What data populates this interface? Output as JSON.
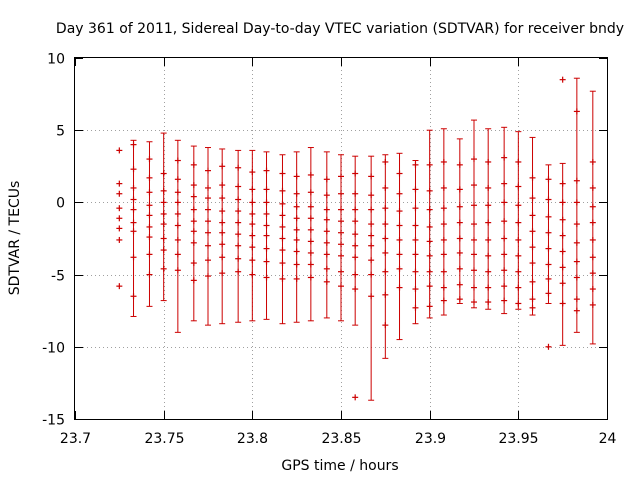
{
  "chart_data": {
    "type": "errorbar",
    "title": "Day 361 of 2011, Sidereal Day-to-day VTEC variation (SDTVAR) for receiver bndy",
    "xlabel": "GPS time / hours",
    "ylabel": "SDTVAR / TECUs",
    "xlim": [
      23.7,
      24.0
    ],
    "ylim": [
      -15,
      10
    ],
    "xticks": [
      23.7,
      23.75,
      23.8,
      23.85,
      23.9,
      23.95,
      24.0
    ],
    "xtick_labels": [
      "23.7",
      "23.75",
      "23.8",
      "23.85",
      "23.9",
      "23.95",
      "24"
    ],
    "yticks": [
      -15,
      -10,
      -5,
      0,
      5,
      10
    ],
    "ytick_labels": [
      "-15",
      "-10",
      "-5",
      "0",
      "5",
      "10"
    ],
    "grid": true,
    "series_color": "#cc0000",
    "series": [
      {
        "x": 23.725,
        "points": [
          3.6,
          1.3,
          0.6,
          -0.4,
          -1.1,
          -1.8,
          -2.6,
          -5.8
        ]
      },
      {
        "x": 23.733,
        "points": [
          4.0,
          2.3,
          1.0,
          0.2,
          -0.5,
          -1.4,
          -2.0,
          -3.8,
          -6.5
        ],
        "lo": -7.9,
        "hi": 4.3
      },
      {
        "x": 23.742,
        "points": [
          3.0,
          1.7,
          0.7,
          -0.2,
          -0.9,
          -1.7,
          -2.4,
          -3.6,
          -5.0
        ],
        "lo": -7.2,
        "hi": 4.2
      },
      {
        "x": 23.75,
        "points": [
          2.0,
          0.8,
          0.0,
          -0.8,
          -1.5,
          -2.5,
          -3.3,
          -4.6
        ],
        "lo": -6.8,
        "hi": 4.8
      },
      {
        "x": 23.758,
        "points": [
          2.9,
          1.6,
          0.7,
          0.0,
          -0.8,
          -1.6,
          -2.6,
          -3.6,
          -4.7
        ],
        "lo": -9.0,
        "hi": 4.3
      },
      {
        "x": 23.767,
        "points": [
          2.6,
          1.2,
          0.4,
          -0.5,
          -1.3,
          -2.0,
          -2.8,
          -4.2,
          -5.4
        ],
        "lo": -8.2,
        "hi": 3.9
      },
      {
        "x": 23.775,
        "points": [
          2.2,
          1.0,
          0.3,
          -0.5,
          -1.3,
          -2.1,
          -3.0,
          -4.0,
          -5.1
        ],
        "lo": -8.5,
        "hi": 3.8
      },
      {
        "x": 23.783,
        "points": [
          2.5,
          1.2,
          0.3,
          -0.6,
          -1.4,
          -2.1,
          -2.9,
          -3.8,
          -4.9
        ],
        "lo": -8.4,
        "hi": 3.7
      },
      {
        "x": 23.792,
        "points": [
          2.4,
          1.1,
          0.2,
          -0.6,
          -1.4,
          -2.2,
          -3.0,
          -3.9,
          -4.8
        ],
        "lo": -8.3,
        "hi": 3.6
      },
      {
        "x": 23.8,
        "points": [
          2.1,
          0.9,
          0.0,
          -0.8,
          -1.5,
          -2.3,
          -3.1,
          -4.0,
          -5.0
        ],
        "lo": -8.2,
        "hi": 3.6
      },
      {
        "x": 23.808,
        "points": [
          2.2,
          0.9,
          0.0,
          -0.8,
          -1.6,
          -2.3,
          -3.2,
          -4.1,
          -5.2
        ],
        "lo": -8.1,
        "hi": 3.5
      },
      {
        "x": 23.817,
        "points": [
          2.0,
          0.8,
          -0.1,
          -0.9,
          -1.7,
          -2.5,
          -3.3,
          -4.2,
          -5.3
        ],
        "lo": -8.4,
        "hi": 3.3
      },
      {
        "x": 23.825,
        "points": [
          1.8,
          0.6,
          -0.3,
          -1.1,
          -1.9,
          -2.6,
          -3.4,
          -4.3,
          -5.3
        ],
        "lo": -8.3,
        "hi": 3.5
      },
      {
        "x": 23.833,
        "points": [
          1.9,
          0.7,
          -0.3,
          -1.1,
          -1.9,
          -2.7,
          -3.5,
          -4.3,
          -5.2
        ],
        "lo": -8.2,
        "hi": 3.8
      },
      {
        "x": 23.842,
        "points": [
          1.6,
          0.5,
          -0.5,
          -1.2,
          -2.0,
          -2.8,
          -3.6,
          -4.6,
          -5.5
        ],
        "lo": -8.0,
        "hi": 3.5
      },
      {
        "x": 23.85,
        "points": [
          1.8,
          0.6,
          -0.5,
          -1.3,
          -2.1,
          -2.9,
          -3.7,
          -4.8,
          -5.8
        ],
        "lo": -8.2,
        "hi": 3.3
      },
      {
        "x": 23.858,
        "points": [
          2.0,
          0.6,
          -0.5,
          -1.3,
          -2.2,
          -3.0,
          -3.8,
          -5.0,
          -6.0,
          -13.5
        ],
        "lo": -8.5,
        "hi": 3.2
      },
      {
        "x": 23.867,
        "points": [
          1.8,
          0.5,
          -0.5,
          -1.5,
          -2.3,
          -3.0,
          -4.0,
          -5.0,
          -6.5
        ],
        "lo": -13.7,
        "hi": 3.2
      },
      {
        "x": 23.875,
        "points": [
          2.8,
          1.0,
          -0.4,
          -1.5,
          -2.5,
          -3.5,
          -4.8,
          -6.4,
          -8.5
        ],
        "lo": -10.8,
        "hi": 3.3
      },
      {
        "x": 23.883,
        "points": [
          2.0,
          0.6,
          -0.6,
          -1.6,
          -2.6,
          -3.6,
          -4.6,
          -5.9
        ],
        "lo": -9.5,
        "hi": 3.4
      },
      {
        "x": 23.892,
        "points": [
          2.6,
          0.9,
          -0.4,
          -1.6,
          -2.6,
          -3.6,
          -4.8,
          -6.0,
          -7.3
        ],
        "lo": -8.4,
        "hi": 2.9
      },
      {
        "x": 23.9,
        "points": [
          2.6,
          0.8,
          -0.5,
          -1.7,
          -2.7,
          -3.7,
          -4.8,
          -5.8,
          -7.2
        ],
        "lo": -8.0,
        "hi": 5.0
      },
      {
        "x": 23.908,
        "points": [
          2.8,
          1.0,
          -0.4,
          -1.5,
          -2.6,
          -3.6,
          -4.8,
          -5.9,
          -6.8
        ],
        "lo": -7.8,
        "hi": 5.1
      },
      {
        "x": 23.917,
        "points": [
          2.6,
          0.9,
          -0.3,
          -1.4,
          -2.5,
          -3.5,
          -4.6,
          -5.7,
          -6.7
        ],
        "lo": -7.0,
        "hi": 4.4
      },
      {
        "x": 23.925,
        "points": [
          3.0,
          1.2,
          -0.2,
          -1.5,
          -2.6,
          -3.6,
          -4.7,
          -5.9,
          -6.9
        ],
        "lo": -7.3,
        "hi": 5.7
      },
      {
        "x": 23.933,
        "points": [
          2.8,
          1.0,
          -0.2,
          -1.4,
          -2.6,
          -3.7,
          -4.8,
          -5.9,
          -6.9
        ],
        "lo": -7.4,
        "hi": 5.1
      },
      {
        "x": 23.942,
        "points": [
          3.1,
          1.3,
          0.0,
          -1.3,
          -2.5,
          -3.6,
          -4.7,
          -5.8,
          -6.8
        ],
        "lo": -7.7,
        "hi": 5.2
      },
      {
        "x": 23.95,
        "points": [
          2.8,
          1.1,
          -0.2,
          -1.4,
          -2.6,
          -3.7,
          -4.8,
          -5.9,
          -7.0
        ],
        "lo": -7.4,
        "hi": 4.9
      },
      {
        "x": 23.958,
        "points": [
          1.7,
          0.3,
          -0.9,
          -2.0,
          -3.1,
          -4.2,
          -5.5,
          -6.7,
          -7.3
        ],
        "lo": -7.8,
        "hi": 4.5
      },
      {
        "x": 23.967,
        "points": [
          1.6,
          0.2,
          -1.0,
          -2.1,
          -3.2,
          -4.3,
          -5.3,
          -6.3,
          -10.0
        ],
        "lo": -7.0,
        "hi": 2.6
      },
      {
        "x": 23.975,
        "points": [
          8.5,
          1.3,
          0.0,
          -1.2,
          -2.3,
          -3.4,
          -4.5,
          -5.6,
          -7.0
        ],
        "lo": -9.9,
        "hi": 2.7
      },
      {
        "x": 23.983,
        "points": [
          6.3,
          1.5,
          0.0,
          -1.5,
          -2.8,
          -4.1,
          -5.2,
          -6.7,
          -7.5
        ],
        "lo": -9.0,
        "hi": 8.6
      },
      {
        "x": 23.992,
        "points": [
          2.8,
          1.0,
          -0.3,
          -1.4,
          -2.6,
          -3.8,
          -4.9,
          -6.0,
          -7.1
        ],
        "lo": -9.8,
        "hi": 7.7
      }
    ]
  }
}
